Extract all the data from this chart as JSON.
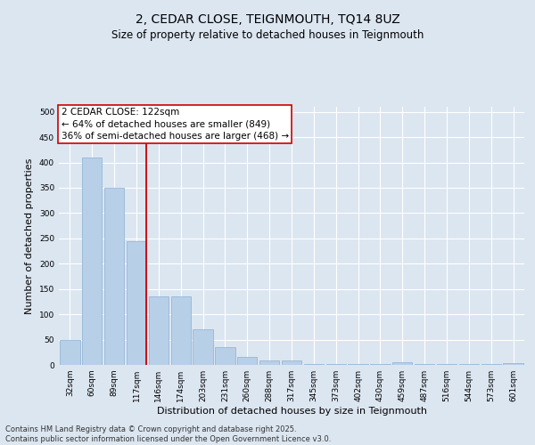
{
  "title_line1": "2, CEDAR CLOSE, TEIGNMOUTH, TQ14 8UZ",
  "title_line2": "Size of property relative to detached houses in Teignmouth",
  "xlabel": "Distribution of detached houses by size in Teignmouth",
  "ylabel": "Number of detached properties",
  "categories": [
    "32sqm",
    "60sqm",
    "89sqm",
    "117sqm",
    "146sqm",
    "174sqm",
    "203sqm",
    "231sqm",
    "260sqm",
    "288sqm",
    "317sqm",
    "345sqm",
    "373sqm",
    "402sqm",
    "430sqm",
    "459sqm",
    "487sqm",
    "516sqm",
    "544sqm",
    "573sqm",
    "601sqm"
  ],
  "values": [
    50,
    410,
    350,
    245,
    135,
    135,
    70,
    35,
    15,
    8,
    8,
    2,
    2,
    2,
    2,
    5,
    2,
    2,
    2,
    2,
    3
  ],
  "bar_color": "#b8cfe8",
  "bar_edge_color": "#8aafd4",
  "vline_color": "#cc0000",
  "vline_x_index": 3,
  "annotation_title": "2 CEDAR CLOSE: 122sqm",
  "annotation_line1": "← 64% of detached houses are smaller (849)",
  "annotation_line2": "36% of semi-detached houses are larger (468) →",
  "annotation_box_facecolor": "#ffffff",
  "annotation_box_edgecolor": "#cc0000",
  "ylim": [
    0,
    510
  ],
  "yticks": [
    0,
    50,
    100,
    150,
    200,
    250,
    300,
    350,
    400,
    450,
    500
  ],
  "background_color": "#dce6f1",
  "grid_color": "#ffffff",
  "footer_line1": "Contains HM Land Registry data © Crown copyright and database right 2025.",
  "footer_line2": "Contains public sector information licensed under the Open Government Licence v3.0.",
  "title_fontsize": 10,
  "subtitle_fontsize": 8.5,
  "ylabel_fontsize": 8,
  "xlabel_fontsize": 8,
  "tick_fontsize": 6.5,
  "annotation_fontsize": 7.5,
  "footer_fontsize": 6
}
